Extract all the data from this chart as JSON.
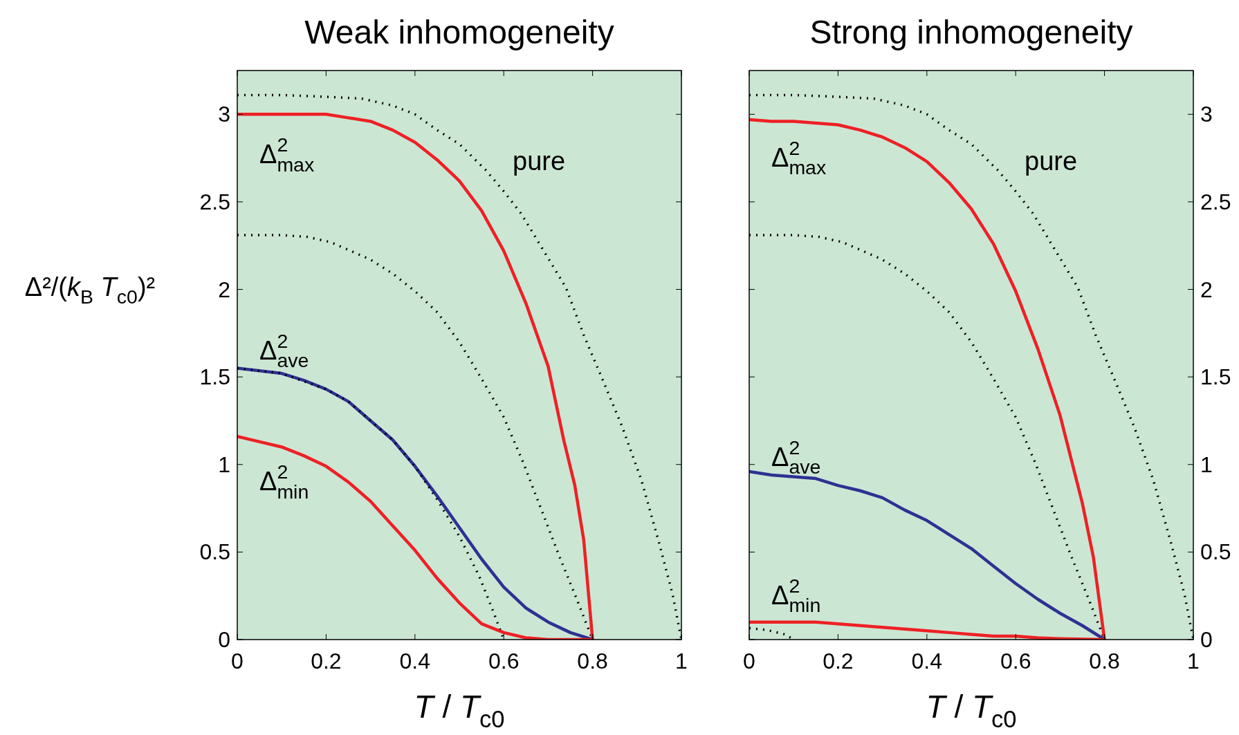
{
  "chart_data": [
    {
      "type": "line",
      "title": "Weak inhomogeneity",
      "xlabel": "T / T$_{c0}$",
      "ylabel": "Δ²/(k$_{B}$ T$_{c0}$)²",
      "xlim": [
        0,
        1
      ],
      "ylim": [
        0,
        3.25
      ],
      "xticks": [
        0,
        0.2,
        0.4,
        0.6,
        0.8,
        1
      ],
      "yticks": [
        0,
        0.5,
        1,
        1.5,
        2,
        2.5,
        3
      ],
      "grid": false,
      "annotations": [
        "Δ$^{2}$$_{max}$",
        "Δ$^{2}$$_{ave}$",
        "Δ$^{2}$$_{min}$",
        "pure"
      ],
      "series": [
        {
          "color": "#000000",
          "line_style": "dotted",
          "x": [
            0,
            0.1,
            0.2,
            0.28,
            0.35,
            0.4,
            0.45,
            0.5,
            0.56,
            0.6,
            0.64,
            0.69,
            0.74,
            0.78,
            0.825,
            0.866,
            0.91,
            0.95,
            0.98,
            1
          ],
          "values": [
            3.11,
            3.11,
            3.1,
            3.09,
            3.05,
            3.0,
            2.91,
            2.83,
            2.68,
            2.56,
            2.43,
            2.22,
            2.01,
            1.74,
            1.47,
            1.22,
            0.91,
            0.55,
            0.26,
            0
          ]
        },
        {
          "color": "#000000",
          "line_style": "dotted",
          "x": [
            0,
            0.1,
            0.157,
            0.21,
            0.255,
            0.3,
            0.35,
            0.4,
            0.45,
            0.5,
            0.55,
            0.6,
            0.644,
            0.685,
            0.726,
            0.763,
            0.8
          ],
          "values": [
            2.31,
            2.31,
            2.3,
            2.27,
            2.22,
            2.17,
            2.09,
            1.99,
            1.87,
            1.7,
            1.49,
            1.27,
            1.01,
            0.74,
            0.47,
            0.24,
            0
          ]
        },
        {
          "color": "#ee2024",
          "line_style": "solid",
          "x": [
            0,
            0.1,
            0.2,
            0.25,
            0.3,
            0.35,
            0.4,
            0.45,
            0.5,
            0.55,
            0.6,
            0.65,
            0.7,
            0.735,
            0.76,
            0.78,
            0.8
          ],
          "values": [
            3.0,
            3.0,
            3.0,
            2.98,
            2.96,
            2.91,
            2.84,
            2.74,
            2.62,
            2.45,
            2.22,
            1.92,
            1.56,
            1.14,
            0.88,
            0.57,
            0
          ]
        },
        {
          "color": "#2e3192",
          "line_style": "solid",
          "x": [
            0,
            0.1,
            0.15,
            0.2,
            0.25,
            0.3,
            0.35,
            0.4,
            0.45,
            0.5,
            0.55,
            0.6,
            0.65,
            0.7,
            0.75,
            0.8
          ],
          "values": [
            1.55,
            1.52,
            1.48,
            1.43,
            1.36,
            1.25,
            1.14,
            0.99,
            0.82,
            0.64,
            0.46,
            0.3,
            0.18,
            0.1,
            0.04,
            0
          ]
        },
        {
          "color": "#000000",
          "line_style": "dotted",
          "x": [
            0,
            0.1,
            0.2,
            0.25,
            0.3,
            0.35,
            0.4,
            0.45,
            0.5,
            0.545,
            0.578,
            0.6
          ],
          "values": [
            1.55,
            1.52,
            1.43,
            1.36,
            1.25,
            1.14,
            0.99,
            0.8,
            0.59,
            0.36,
            0.15,
            0
          ]
        },
        {
          "color": "#ee2024",
          "line_style": "solid",
          "x": [
            0,
            0.05,
            0.1,
            0.15,
            0.2,
            0.25,
            0.3,
            0.35,
            0.4,
            0.45,
            0.5,
            0.55,
            0.6,
            0.65,
            0.7,
            0.75,
            0.8
          ],
          "values": [
            1.16,
            1.13,
            1.1,
            1.05,
            0.99,
            0.9,
            0.79,
            0.65,
            0.51,
            0.35,
            0.21,
            0.09,
            0.04,
            0.01,
            0,
            0,
            0
          ]
        }
      ]
    },
    {
      "type": "line",
      "title": "Strong inhomogeneity",
      "xlabel": "T / T$_{c0}$",
      "xlim": [
        0,
        1
      ],
      "y2lim": [
        0,
        3.25
      ],
      "xticks": [
        0,
        0.2,
        0.4,
        0.6,
        0.8,
        1
      ],
      "y2ticks": [
        0,
        0.5,
        1,
        1.5,
        2,
        2.5,
        3
      ],
      "grid": false,
      "annotations": [
        "Δ$^{2}$$_{max}$",
        "Δ$^{2}$$_{ave}$",
        "Δ$^{2}$$_{min}$",
        "pure"
      ],
      "series": [
        {
          "axis": "y2",
          "color": "#000000",
          "line_style": "dotted",
          "x": [
            0,
            0.1,
            0.2,
            0.28,
            0.35,
            0.4,
            0.45,
            0.5,
            0.56,
            0.6,
            0.64,
            0.69,
            0.74,
            0.78,
            0.825,
            0.866,
            0.91,
            0.95,
            0.98,
            1
          ],
          "values": [
            3.11,
            3.11,
            3.1,
            3.09,
            3.05,
            3.0,
            2.91,
            2.83,
            2.68,
            2.56,
            2.43,
            2.22,
            2.01,
            1.74,
            1.47,
            1.22,
            0.91,
            0.55,
            0.26,
            0
          ]
        },
        {
          "axis": "y2",
          "color": "#000000",
          "line_style": "dotted",
          "x": [
            0,
            0.1,
            0.157,
            0.21,
            0.255,
            0.3,
            0.35,
            0.4,
            0.45,
            0.5,
            0.55,
            0.6,
            0.644,
            0.685,
            0.726,
            0.763,
            0.8
          ],
          "values": [
            2.31,
            2.31,
            2.3,
            2.27,
            2.22,
            2.17,
            2.09,
            1.99,
            1.87,
            1.7,
            1.49,
            1.27,
            1.01,
            0.74,
            0.47,
            0.24,
            0
          ]
        },
        {
          "axis": "y2",
          "color": "#000000",
          "line_style": "dotted",
          "x": [
            0,
            0.04,
            0.08,
            0.1
          ],
          "values": [
            0.065,
            0.055,
            0.03,
            0
          ]
        },
        {
          "axis": "y2",
          "color": "#ee2024",
          "line_style": "solid",
          "x": [
            0,
            0.05,
            0.1,
            0.15,
            0.2,
            0.25,
            0.3,
            0.35,
            0.4,
            0.45,
            0.5,
            0.55,
            0.6,
            0.65,
            0.7,
            0.75,
            0.775,
            0.8
          ],
          "values": [
            2.97,
            2.96,
            2.96,
            2.95,
            2.94,
            2.91,
            2.87,
            2.81,
            2.73,
            2.61,
            2.46,
            2.26,
            1.99,
            1.66,
            1.28,
            0.78,
            0.47,
            0
          ]
        },
        {
          "axis": "y2",
          "color": "#2e3192",
          "line_style": "solid",
          "x": [
            0,
            0.05,
            0.1,
            0.15,
            0.2,
            0.25,
            0.3,
            0.35,
            0.4,
            0.45,
            0.5,
            0.55,
            0.6,
            0.65,
            0.7,
            0.75,
            0.8
          ],
          "values": [
            0.96,
            0.94,
            0.93,
            0.92,
            0.88,
            0.85,
            0.81,
            0.74,
            0.68,
            0.6,
            0.52,
            0.42,
            0.32,
            0.23,
            0.15,
            0.08,
            0
          ]
        },
        {
          "axis": "y2",
          "color": "#ee2024",
          "line_style": "solid",
          "x": [
            0,
            0.05,
            0.1,
            0.15,
            0.2,
            0.25,
            0.3,
            0.35,
            0.4,
            0.45,
            0.5,
            0.55,
            0.6,
            0.65,
            0.7,
            0.8
          ],
          "values": [
            0.1,
            0.1,
            0.1,
            0.1,
            0.09,
            0.08,
            0.07,
            0.06,
            0.05,
            0.04,
            0.03,
            0.02,
            0.02,
            0.01,
            0.005,
            0
          ]
        }
      ]
    }
  ]
}
